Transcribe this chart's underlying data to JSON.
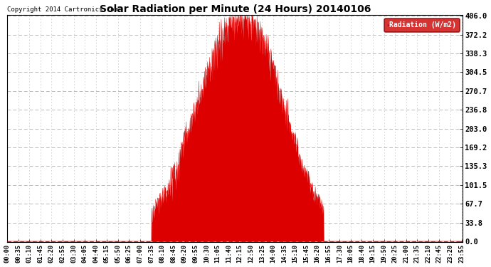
{
  "title": "Solar Radiation per Minute (24 Hours) 20140106",
  "copyright_text": "Copyright 2014 Cartronics.com",
  "legend_label": "Radiation (W/m2)",
  "bg_color": "#ffffff",
  "plot_bg_color": "#ffffff",
  "fill_color": "#dd0000",
  "line_color": "#dd0000",
  "grid_color": "#bbbbbb",
  "dashed_h_color": "#ff0000",
  "ytick_labels": [
    "0.0",
    "33.8",
    "67.7",
    "101.5",
    "135.3",
    "169.2",
    "203.0",
    "236.8",
    "270.7",
    "304.5",
    "338.3",
    "372.2",
    "406.0"
  ],
  "ytick_values": [
    0.0,
    33.8,
    67.7,
    101.5,
    135.3,
    169.2,
    203.0,
    236.8,
    270.7,
    304.5,
    338.3,
    372.2,
    406.0
  ],
  "ymax": 406.0,
  "ymin": 0.0,
  "total_minutes": 1440,
  "xtick_step": 35,
  "t_rise": 455,
  "t_set": 1000,
  "t_peak": 745,
  "peak_val": 406.0
}
